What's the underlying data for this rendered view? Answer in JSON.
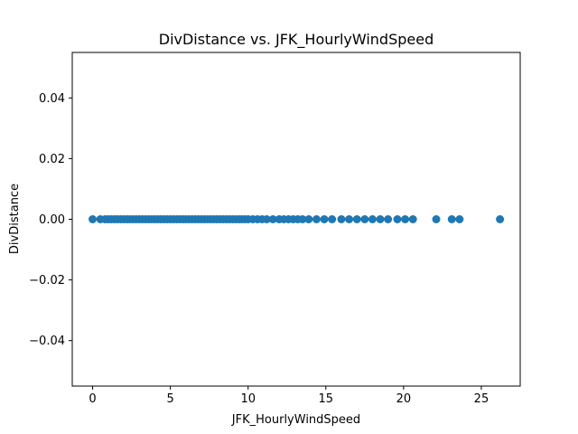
{
  "chart_data": {
    "type": "scatter",
    "title": "DivDistance vs. JFK_HourlyWindSpeed",
    "xlabel": "JFK_HourlyWindSpeed",
    "ylabel": "DivDistance",
    "xlim": [
      -1.31,
      27.5
    ],
    "ylim": [
      -0.055,
      0.055
    ],
    "xticks": [
      0,
      5,
      10,
      15,
      20,
      25
    ],
    "xtick_labels": [
      "0",
      "5",
      "10",
      "15",
      "20",
      "25"
    ],
    "yticks": [
      -0.04,
      -0.02,
      0.0,
      0.02,
      0.04
    ],
    "ytick_labels": [
      "−0.04",
      "−0.02",
      "0.00",
      "0.02",
      "0.04"
    ],
    "grid": false,
    "legend": false,
    "marker_color": "#1f77b4",
    "series": [
      {
        "x": [
          0,
          0.5,
          0.8,
          1.0,
          1.2,
          1.4,
          1.6,
          1.8,
          2.0,
          2.2,
          2.4,
          2.6,
          2.8,
          3.0,
          3.2,
          3.4,
          3.6,
          3.8,
          4.0,
          4.2,
          4.4,
          4.6,
          4.8,
          5.0,
          5.2,
          5.4,
          5.6,
          5.8,
          6.0,
          6.2,
          6.4,
          6.6,
          6.8,
          7.0,
          7.2,
          7.4,
          7.6,
          7.8,
          8.0,
          8.2,
          8.4,
          8.6,
          8.8,
          9.0,
          9.2,
          9.4,
          9.6,
          9.8,
          10.0,
          10.3,
          10.6,
          10.9,
          11.2,
          11.6,
          12.0,
          12.3,
          12.6,
          12.9,
          13.2,
          13.5,
          13.9,
          14.4,
          14.9,
          15.4,
          16.0,
          16.5,
          17.0,
          17.5,
          18.0,
          18.5,
          19.0,
          19.6,
          20.1,
          20.6,
          22.1,
          23.1,
          23.6,
          26.2
        ],
        "y": [
          0,
          0,
          0,
          0,
          0,
          0,
          0,
          0,
          0,
          0,
          0,
          0,
          0,
          0,
          0,
          0,
          0,
          0,
          0,
          0,
          0,
          0,
          0,
          0,
          0,
          0,
          0,
          0,
          0,
          0,
          0,
          0,
          0,
          0,
          0,
          0,
          0,
          0,
          0,
          0,
          0,
          0,
          0,
          0,
          0,
          0,
          0,
          0,
          0,
          0,
          0,
          0,
          0,
          0,
          0,
          0,
          0,
          0,
          0,
          0,
          0,
          0,
          0,
          0,
          0,
          0,
          0,
          0,
          0,
          0,
          0,
          0,
          0,
          0,
          0,
          0,
          0,
          0
        ]
      }
    ]
  }
}
